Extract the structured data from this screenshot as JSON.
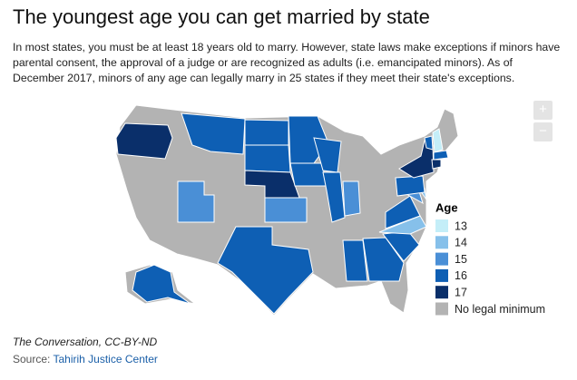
{
  "header": {
    "title": "The youngest age you can get married by state",
    "description": "In most states, you must be at least 18 years old to marry. However, state laws make exceptions if minors have parental consent, the approval of a judge or are recognized as adults (i.e. emancipated minors). As of December 2017, minors of any age can legally marry in 25 states if they meet their state's exceptions."
  },
  "controls": {
    "zoom_in": "+",
    "zoom_out": "−"
  },
  "legend": {
    "title": "Age",
    "items": [
      {
        "label": "13",
        "color": "#c4eef8"
      },
      {
        "label": "14",
        "color": "#86c0ea"
      },
      {
        "label": "15",
        "color": "#4a8fd6"
      },
      {
        "label": "16",
        "color": "#0e5fb4"
      },
      {
        "label": "17",
        "color": "#0a2f6a"
      },
      {
        "label": "No legal minimum",
        "color": "#b3b3b3"
      }
    ]
  },
  "footer": {
    "credit": "The Conversation, CC-BY-ND",
    "source_prefix": "Source: ",
    "source_link": "Tahirih Justice Center"
  }
}
